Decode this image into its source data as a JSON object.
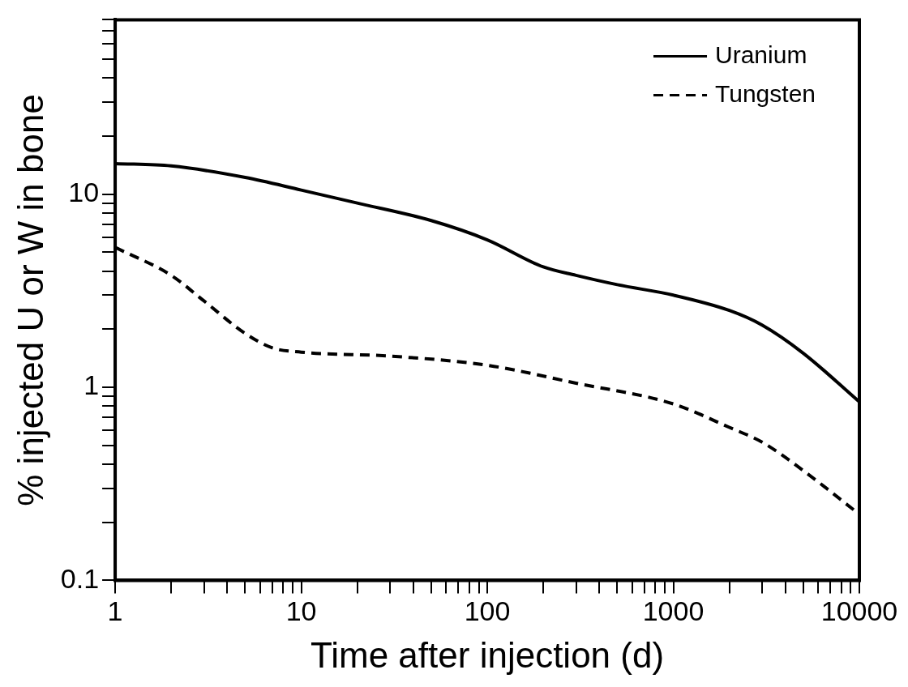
{
  "chart_data": {
    "type": "line",
    "xlabel": "Time after injection (d)",
    "ylabel": "% injected U or W in bone",
    "log": "xy",
    "xlim": [
      1,
      10000
    ],
    "ylim": [
      0.1,
      80
    ],
    "xticks": [
      1,
      {
        "value": 2,
        "label": null
      },
      {
        "value": 3,
        "label": null
      },
      {
        "value": 4,
        "label": null
      },
      {
        "value": 5,
        "label": null
      },
      {
        "value": 6,
        "label": null
      },
      {
        "value": 7,
        "label": null
      },
      {
        "value": 8,
        "label": null
      },
      {
        "value": 9,
        "label": null
      },
      10,
      {
        "value": 20,
        "label": null
      },
      {
        "value": 30,
        "label": null
      },
      {
        "value": 40,
        "label": null
      },
      {
        "value": 50,
        "label": null
      },
      {
        "value": 60,
        "label": null
      },
      {
        "value": 70,
        "label": null
      },
      {
        "value": 80,
        "label": null
      },
      {
        "value": 90,
        "label": null
      },
      100,
      {
        "value": 200,
        "label": null
      },
      {
        "value": 300,
        "label": null
      },
      {
        "value": 400,
        "label": null
      },
      {
        "value": 500,
        "label": null
      },
      {
        "value": 600,
        "label": null
      },
      {
        "value": 700,
        "label": null
      },
      {
        "value": 800,
        "label": null
      },
      {
        "value": 900,
        "label": null
      },
      1000,
      {
        "value": 2000,
        "label": null
      },
      {
        "value": 3000,
        "label": null
      },
      {
        "value": 4000,
        "label": null
      },
      {
        "value": 5000,
        "label": null
      },
      {
        "value": 6000,
        "label": null
      },
      {
        "value": 7000,
        "label": null
      },
      {
        "value": 8000,
        "label": null
      },
      {
        "value": 9000,
        "label": null
      },
      10000
    ],
    "yticks": [
      0.1,
      {
        "value": 0.2,
        "label": null
      },
      {
        "value": 0.3,
        "label": null
      },
      {
        "value": 0.4,
        "label": null
      },
      {
        "value": 0.5,
        "label": null
      },
      {
        "value": 0.6,
        "label": null
      },
      {
        "value": 0.7,
        "label": null
      },
      {
        "value": 0.8,
        "label": null
      },
      {
        "value": 0.9,
        "label": null
      },
      1,
      {
        "value": 2,
        "label": null
      },
      {
        "value": 3,
        "label": null
      },
      {
        "value": 4,
        "label": null
      },
      {
        "value": 5,
        "label": null
      },
      {
        "value": 6,
        "label": null
      },
      {
        "value": 7,
        "label": null
      },
      {
        "value": 8,
        "label": null
      },
      {
        "value": 9,
        "label": null
      },
      10,
      {
        "value": 20,
        "label": null
      },
      {
        "value": 30,
        "label": null
      },
      {
        "value": 40,
        "label": null
      },
      {
        "value": 50,
        "label": null
      },
      {
        "value": 60,
        "label": null
      },
      {
        "value": 70,
        "label": null
      },
      {
        "value": 80,
        "label": null
      }
    ],
    "legend": "top right",
    "marker": "none",
    "grid": false,
    "series": [
      {
        "name": "Uranium",
        "color": "#000000",
        "line_style": "solid",
        "x": [
          1,
          2,
          5,
          10,
          20,
          50,
          100,
          200,
          300,
          500,
          1000,
          2000,
          3000,
          5000,
          10000
        ],
        "values": [
          14.4,
          14,
          12.2,
          10.5,
          9,
          7.3,
          5.8,
          4.2,
          3.8,
          3.4,
          3.0,
          2.5,
          2.1,
          1.5,
          0.84
        ]
      },
      {
        "name": "Tungsten",
        "color": "#000000",
        "line_style": "dashed",
        "x": [
          1,
          2,
          3,
          5,
          7,
          10,
          30,
          100,
          300,
          1000,
          2000,
          3000,
          5000,
          10000
        ],
        "values": [
          5.3,
          3.8,
          2.8,
          1.9,
          1.6,
          1.52,
          1.45,
          1.3,
          1.05,
          0.82,
          0.62,
          0.52,
          0.37,
          0.22
        ]
      }
    ]
  }
}
